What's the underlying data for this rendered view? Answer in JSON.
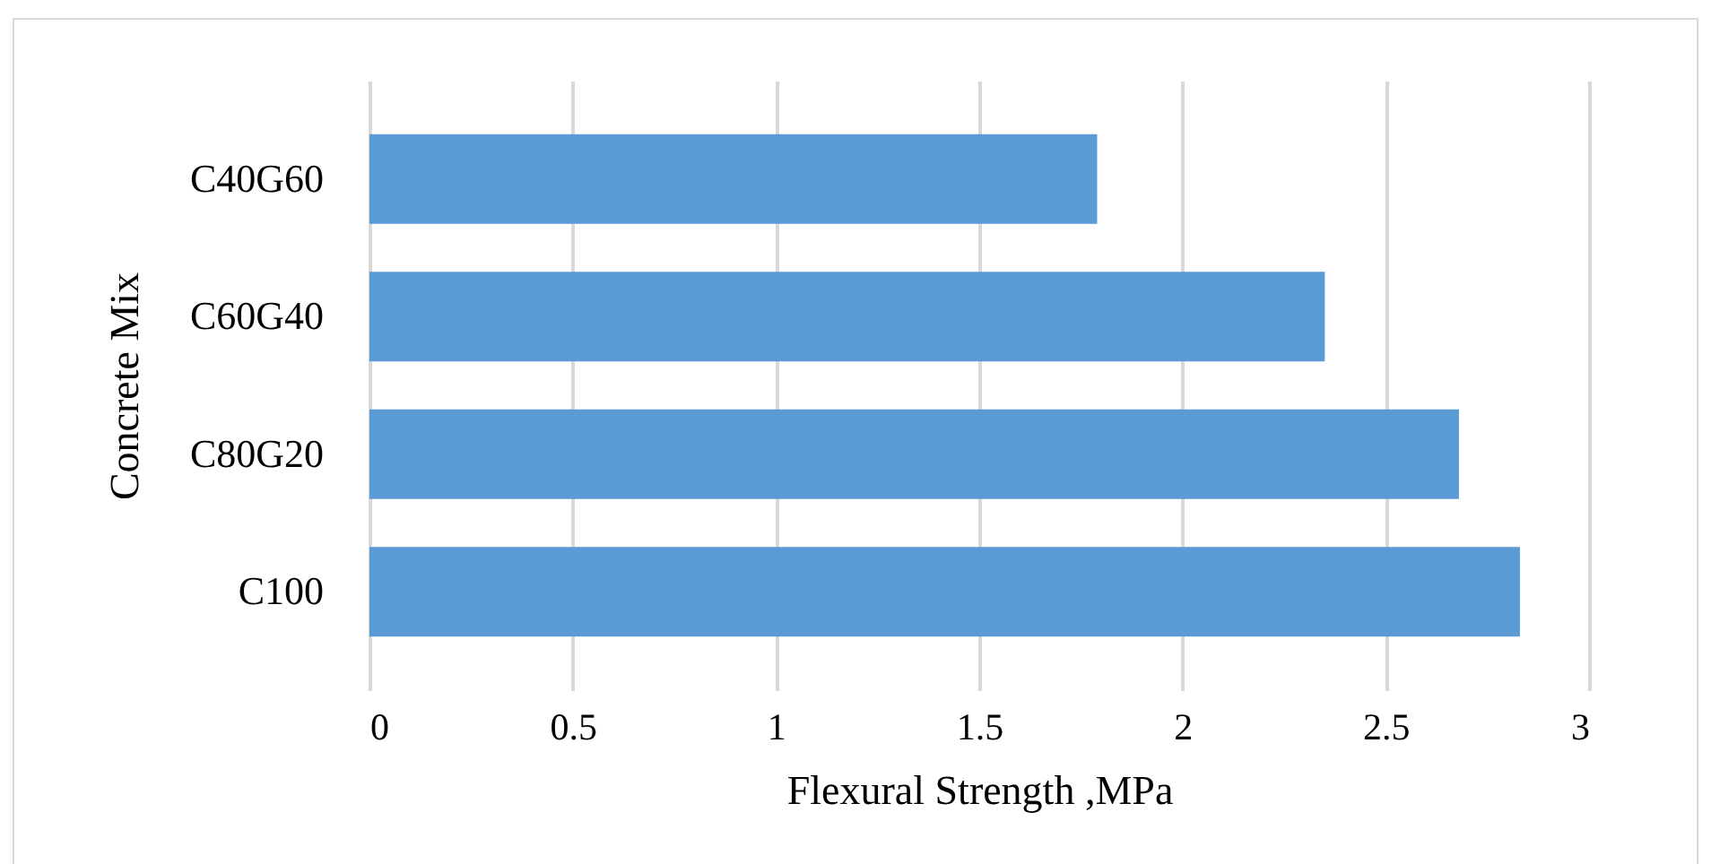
{
  "chart_data": {
    "type": "bar",
    "orientation": "horizontal",
    "categories": [
      "C40G60",
      "C60G40",
      "C80G20",
      "C100"
    ],
    "values": [
      1.79,
      2.35,
      2.68,
      2.83
    ],
    "color": "#5b9bd5",
    "xlabel": "Flexural Strength ,MPa",
    "ylabel": "Concrete Mix",
    "xlim": [
      0,
      3
    ],
    "xticks": [
      0,
      0.5,
      1,
      1.5,
      2,
      2.5,
      3
    ],
    "grid": "x"
  }
}
